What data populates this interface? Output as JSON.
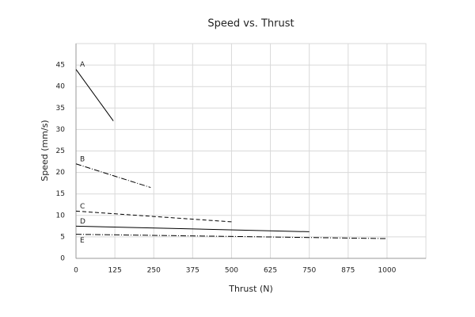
{
  "chart_data": {
    "type": "line",
    "title": "Speed vs. Thrust",
    "x_label": "Thrust (N)",
    "y_label": "Speed (mm/s)",
    "xlim": [
      0,
      1125
    ],
    "xticks": [
      0,
      125,
      250,
      375,
      500,
      625,
      750,
      875,
      1000
    ],
    "ylim": [
      0,
      50
    ],
    "yticks": [
      0,
      5,
      10,
      15,
      20,
      25,
      30,
      35,
      40,
      45
    ],
    "grid": true,
    "series": [
      {
        "name": "A",
        "color": "#000000",
        "dash": "solid",
        "x": [
          0,
          120
        ],
        "values": [
          44,
          32
        ]
      },
      {
        "name": "B",
        "color": "#000000",
        "dash": "dashdot",
        "x": [
          0,
          240
        ],
        "values": [
          22,
          16.5
        ]
      },
      {
        "name": "C",
        "color": "#000000",
        "dash": "dashed",
        "x": [
          0,
          500
        ],
        "values": [
          11,
          8.5
        ]
      },
      {
        "name": "D",
        "color": "#000000",
        "dash": "solid",
        "x": [
          0,
          750
        ],
        "values": [
          7.5,
          6.2
        ]
      },
      {
        "name": "E",
        "color": "#000000",
        "dash": "dashdot",
        "x": [
          0,
          1000
        ],
        "values": [
          5.6,
          4.6
        ]
      }
    ]
  }
}
